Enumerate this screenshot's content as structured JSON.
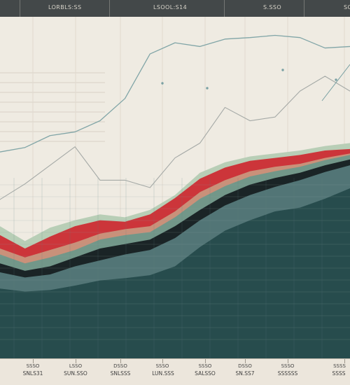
{
  "header": {
    "labels": [
      "LORBLS:SS",
      "LSOOL:S14",
      "S.SSO",
      "SG"
    ]
  },
  "chart_data": {
    "type": "area",
    "title": "",
    "xlabel": "",
    "ylabel": "",
    "grid": true,
    "legend": "none",
    "x_labels": [
      {
        "top": "SSSO",
        "bottom": "SNLS31"
      },
      {
        "top": "LSSO",
        "bottom": "SUN.SSO"
      },
      {
        "top": "DSSO",
        "bottom": "SNLSSS"
      },
      {
        "top": "SSSO",
        "bottom": "LUN.SSS"
      },
      {
        "top": "SSSO",
        "bottom": "SALSSO"
      },
      {
        "top": "DSSO",
        "bottom": "SN.SS7"
      },
      {
        "top": "SSSO",
        "bottom": "SSSSSS"
      },
      {
        "top": "SSSS",
        "bottom": "SSSS"
      }
    ],
    "series": [
      {
        "color": "#274c4d",
        "values": [
          94,
          90,
          92,
          98,
          105,
          108,
          112,
          124,
          150,
          172,
          186,
          198,
          203,
          215,
          229
        ]
      },
      {
        "color": "#54797a",
        "values": [
          116,
          109,
          113,
          124,
          132,
          140,
          146,
          162,
          186,
          206,
          220,
          231,
          240,
          251,
          260
        ]
      },
      {
        "color": "#171f22",
        "values": [
          128,
          118,
          124,
          136,
          148,
          154,
          160,
          178,
          200,
          220,
          234,
          243,
          250,
          260,
          268
        ]
      },
      {
        "color": "#6e9789",
        "values": [
          140,
          128,
          136,
          146,
          160,
          166,
          170,
          190,
          215,
          232,
          245,
          252,
          258,
          267,
          274
        ]
      },
      {
        "color": "#c9957d",
        "values": [
          148,
          136,
          146,
          156,
          168,
          174,
          178,
          198,
          224,
          240,
          252,
          258,
          262,
          270,
          276
        ]
      },
      {
        "color": "#cd2f35",
        "values": [
          166,
          148,
          164,
          178,
          186,
          184,
          194,
          216,
          242,
          257,
          266,
          270,
          274,
          280,
          282
        ]
      },
      {
        "color": "#b5ccb4",
        "values": [
          178,
          158,
          176,
          186,
          194,
          190,
          200,
          220,
          250,
          264,
          272,
          276,
          280,
          286,
          290
        ]
      }
    ],
    "lines": [
      {
        "color": "#7aa1a3",
        "values": [
          278,
          284,
          300,
          305,
          320,
          350,
          410,
          425,
          420,
          430,
          432,
          435,
          432,
          418,
          420
        ]
      },
      {
        "color": "#9ca2a0",
        "values": [
          214,
          235,
          260,
          285,
          240,
          240,
          230,
          270,
          290,
          338,
          320,
          325,
          360,
          380,
          360
        ]
      }
    ]
  }
}
